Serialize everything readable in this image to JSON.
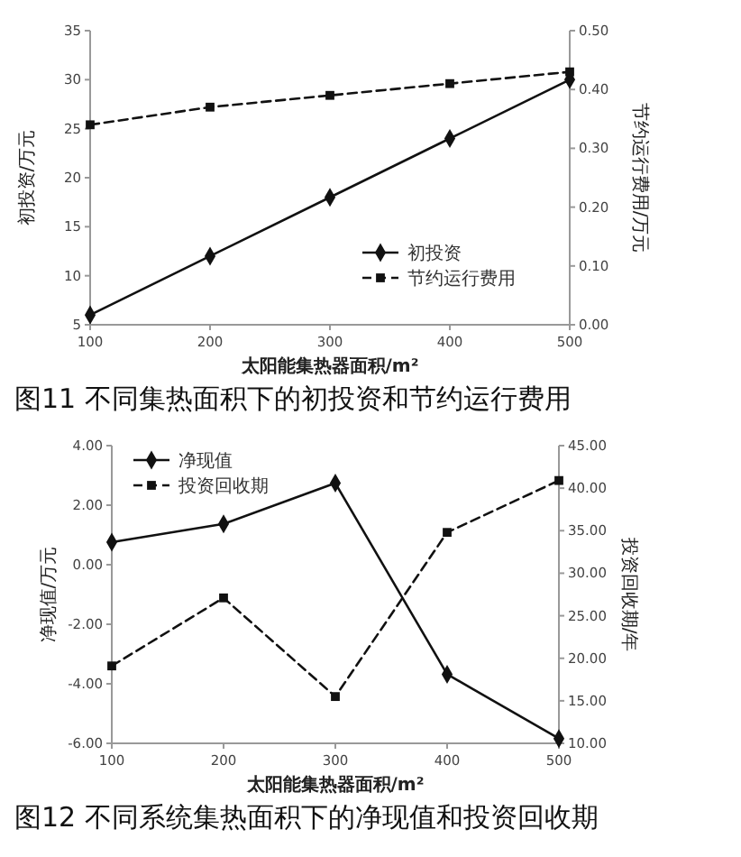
{
  "chart_data": [
    {
      "type": "line",
      "annotations": [
        "图11 不同集热面积下的初投资和节约运行费用"
      ],
      "xlabel": "太阳能集热器面积/m²",
      "ylabel": "初投资/万元",
      "y2label": "节约运行费用/万元",
      "x": [
        100,
        200,
        300,
        400,
        500
      ],
      "xlim": [
        100,
        500
      ],
      "xticks": [
        100,
        200,
        300,
        400,
        500
      ],
      "ylim": [
        5,
        35
      ],
      "yticks": [
        5,
        10,
        15,
        20,
        25,
        30,
        35
      ],
      "y2lim": [
        0,
        0.5
      ],
      "y2ticks": [
        {
          "value": 0,
          "label": "0.00"
        },
        {
          "value": 0.1,
          "label": "0.10"
        },
        {
          "value": 0.2,
          "label": "0.20"
        },
        {
          "value": 0.3,
          "label": "0.30"
        },
        {
          "value": 0.4,
          "label": "0.40"
        },
        {
          "value": 0.5,
          "label": "0.50"
        }
      ],
      "legend": "bottom right",
      "grid": false,
      "series": [
        {
          "name": "初投资",
          "color": "#111111",
          "values": [
            6,
            12,
            18,
            24,
            30
          ],
          "marker": "diamond",
          "line_style": "solid"
        },
        {
          "name": "节约运行费用",
          "color": "#111111",
          "values": [
            0.34,
            0.37,
            0.39,
            0.41,
            0.43
          ],
          "axis": "y2",
          "marker": "square",
          "line_style": "dashed"
        }
      ]
    },
    {
      "type": "line",
      "annotations": [
        "图12 不同系统集热面积下的净现值和投资回收期"
      ],
      "xlabel": "太阳能集热器面积/m²",
      "ylabel": "净现值/万元",
      "y2label": "投资回收期/年",
      "x": [
        100,
        200,
        300,
        400,
        500
      ],
      "xlim": [
        100,
        500
      ],
      "xticks": [
        100,
        200,
        300,
        400,
        500
      ],
      "ylim": [
        -6,
        4
      ],
      "yticks": [
        {
          "value": -6,
          "label": "-6.00"
        },
        {
          "value": -4,
          "label": "-4.00"
        },
        {
          "value": -2,
          "label": "-2.00"
        },
        {
          "value": 0,
          "label": "0.00"
        },
        {
          "value": 2,
          "label": "2.00"
        },
        {
          "value": 4,
          "label": "4.00"
        }
      ],
      "y2lim": [
        10,
        45
      ],
      "y2ticks": [
        {
          "value": 10,
          "label": "10.00"
        },
        {
          "value": 15,
          "label": "15.00"
        },
        {
          "value": 20,
          "label": "20.00"
        },
        {
          "value": 25,
          "label": "25.00"
        },
        {
          "value": 30,
          "label": "30.00"
        },
        {
          "value": 35,
          "label": "35.00"
        },
        {
          "value": 40,
          "label": "40.00"
        },
        {
          "value": 45,
          "label": "45.00"
        }
      ],
      "legend": "top left",
      "grid": false,
      "series": [
        {
          "name": "净现值",
          "color": "#111111",
          "values": [
            0.76,
            1.37,
            2.74,
            -3.68,
            -5.84
          ],
          "marker": "diamond",
          "line_style": "solid"
        },
        {
          "name": "投资回收期",
          "color": "#111111",
          "values": [
            19.1,
            27.1,
            15.5,
            34.8,
            40.9
          ],
          "axis": "y2",
          "marker": "square",
          "line_style": "dashed"
        }
      ]
    }
  ]
}
